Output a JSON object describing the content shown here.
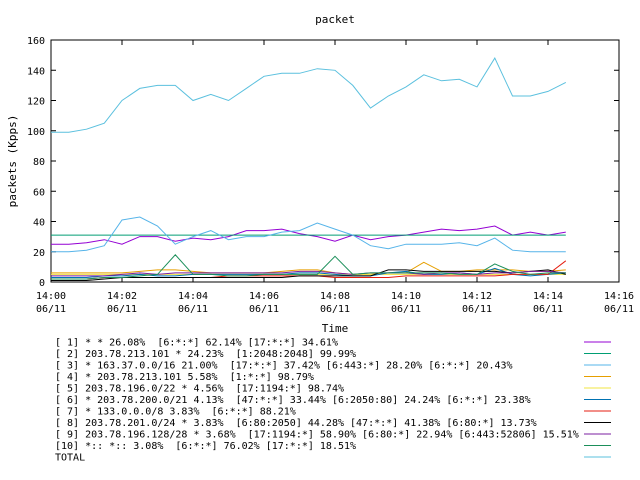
{
  "chart_data": {
    "type": "line",
    "title": "packet",
    "xlabel": "Time",
    "ylabel": "packets (Kpps)",
    "ylim": [
      0,
      160
    ],
    "yticks": [
      0,
      20,
      40,
      60,
      80,
      100,
      120,
      140,
      160
    ],
    "xlim": [
      "14:00",
      "14:16"
    ],
    "xticks": [
      {
        "time": "14:00",
        "date": "06/11"
      },
      {
        "time": "14:02",
        "date": "06/11"
      },
      {
        "time": "14:04",
        "date": "06/11"
      },
      {
        "time": "14:06",
        "date": "06/11"
      },
      {
        "time": "14:08",
        "date": "06/11"
      },
      {
        "time": "14:10",
        "date": "06/11"
      },
      {
        "time": "14:12",
        "date": "06/11"
      },
      {
        "time": "14:14",
        "date": "06/11"
      },
      {
        "time": "14:16",
        "date": "06/11"
      }
    ],
    "x": [
      "14:00:00",
      "14:00:30",
      "14:01:00",
      "14:01:30",
      "14:02:00",
      "14:02:30",
      "14:03:00",
      "14:03:30",
      "14:04:00",
      "14:04:30",
      "14:05:00",
      "14:05:30",
      "14:06:00",
      "14:06:30",
      "14:07:00",
      "14:07:30",
      "14:08:00",
      "14:08:30",
      "14:09:00",
      "14:09:30",
      "14:10:00",
      "14:10:30",
      "14:11:00",
      "14:11:30",
      "14:12:00",
      "14:12:30",
      "14:13:00",
      "14:13:30",
      "14:14:00",
      "14:14:30"
    ],
    "series": [
      {
        "name": "[ 1] * * 26.08%  [6:*:*] 62.14% [17:*:*] 34.61%",
        "color": "#9400d3",
        "values": [
          25,
          25,
          26,
          28,
          25,
          30,
          30,
          27,
          29,
          28,
          30,
          34,
          34,
          35,
          32,
          30,
          27,
          31,
          28,
          30,
          31,
          33,
          35,
          34,
          35,
          37,
          31,
          33,
          31,
          33
        ]
      },
      {
        "name": "[ 2] 203.78.213.101 * 24.23%  [1:2048:2048] 99.99%",
        "color": "#009e73",
        "values": [
          31,
          31,
          31,
          31,
          31,
          31,
          31,
          31,
          31,
          31,
          31,
          31,
          31,
          31,
          31,
          31,
          31,
          31,
          31,
          31,
          31,
          31,
          31,
          31,
          31,
          31,
          31,
          31,
          31,
          31
        ]
      },
      {
        "name": "[ 3] * 163.37.0.0/16 21.00%  [17:*:*] 37.42% [6:443:*] 28.20% [6:*:*] 20.43%",
        "color": "#56b4e9",
        "values": [
          20,
          20,
          21,
          24,
          41,
          43,
          37,
          25,
          30,
          34,
          28,
          30,
          30,
          33,
          34,
          39,
          35,
          31,
          24,
          22,
          25,
          25,
          25,
          26,
          24,
          29,
          21,
          20,
          20,
          20
        ]
      },
      {
        "name": "[ 4] * 203.78.213.101 5.58%  [1:*:*] 98.79%",
        "color": "#e69f00",
        "values": [
          6,
          6,
          6,
          6,
          6,
          7,
          8,
          8,
          7,
          6,
          6,
          6,
          6,
          7,
          8,
          8,
          6,
          5,
          5,
          6,
          6,
          13,
          7,
          7,
          8,
          8,
          8,
          7,
          7,
          8
        ]
      },
      {
        "name": "[ 5] 203.78.196.0/22 * 4.56%  [17:1194:*] 98.74%",
        "color": "#f0e442",
        "values": [
          5,
          5,
          5,
          5,
          5,
          5,
          5,
          5,
          5,
          5,
          5,
          5,
          5,
          5,
          5,
          5,
          5,
          5,
          5,
          5,
          5,
          5,
          5,
          5,
          5,
          5,
          5,
          5,
          5,
          5
        ]
      },
      {
        "name": "[ 6] * 203.78.200.0/21 4.13%  [47:*:*] 33.44% [6:2050:80] 24.24% [6:*:*] 23.38%",
        "color": "#0072b2",
        "values": [
          3,
          3,
          3,
          4,
          4,
          5,
          4,
          4,
          5,
          5,
          5,
          5,
          5,
          5,
          6,
          6,
          5,
          4,
          4,
          6,
          7,
          5,
          5,
          6,
          5,
          9,
          5,
          4,
          5,
          6
        ]
      },
      {
        "name": "[ 7] * 133.0.0.0/8 3.83%  [6:*:*] 88.21%",
        "color": "#e51e10",
        "values": [
          2,
          2,
          2,
          3,
          3,
          3,
          3,
          3,
          3,
          3,
          4,
          4,
          4,
          4,
          4,
          4,
          3,
          3,
          3,
          3,
          4,
          4,
          4,
          4,
          4,
          4,
          5,
          5,
          5,
          14
        ]
      },
      {
        "name": "[ 8] 203.78.201.0/24 * 3.83%  [6:80:2050] 44.28% [47:*:*] 41.38% [6:80:*] 13.73%",
        "color": "#000000",
        "values": [
          1,
          1,
          1,
          2,
          3,
          3,
          3,
          3,
          3,
          3,
          3,
          3,
          3,
          3,
          4,
          4,
          4,
          4,
          4,
          8,
          8,
          7,
          7,
          7,
          7,
          7,
          6,
          7,
          8,
          5
        ]
      },
      {
        "name": "[ 9] 203.78.196.128/28 * 3.68%  [17:1194:*] 58.90% [6:80:*] 22.94% [6:443:52806] 15.51%",
        "color": "#7b1fa2",
        "values": [
          4,
          4,
          4,
          4,
          5,
          6,
          5,
          6,
          6,
          6,
          6,
          6,
          6,
          6,
          7,
          7,
          6,
          5,
          6,
          6,
          6,
          5,
          6,
          6,
          5,
          6,
          6,
          7,
          7,
          6
        ]
      },
      {
        "name": "[10] *:: *:: 3.08%  [6:*:*] 76.02% [17:*:*] 18.51%",
        "color": "#1b8f5a",
        "values": [
          2,
          2,
          2,
          3,
          3,
          4,
          5,
          18,
          5,
          5,
          4,
          4,
          5,
          5,
          5,
          5,
          17,
          5,
          6,
          6,
          6,
          6,
          6,
          5,
          5,
          12,
          7,
          5,
          6,
          6
        ]
      },
      {
        "name": "TOTAL",
        "color": "#5bc0de",
        "values": [
          99,
          99,
          101,
          105,
          120,
          128,
          130,
          130,
          120,
          124,
          120,
          128,
          136,
          138,
          138,
          141,
          140,
          130,
          115,
          123,
          129,
          137,
          133,
          134,
          129,
          148,
          123,
          123,
          126,
          132
        ]
      }
    ]
  }
}
